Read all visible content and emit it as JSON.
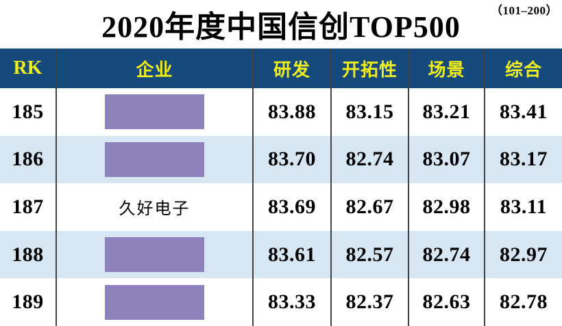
{
  "page": {
    "range_note": "（101–200）",
    "title": "2020年度中国信创TOP500"
  },
  "colors": {
    "header_bg": "#164a7c",
    "header_text": "#f0ee1c",
    "row_alt_bg": "#d7e6f3",
    "redaction_box": "#8d82bc",
    "column_divider": "#424242",
    "body_text": "#000000"
  },
  "table": {
    "columns": [
      {
        "key": "rk",
        "label": "RK"
      },
      {
        "key": "company",
        "label": "企业"
      },
      {
        "key": "rd",
        "label": "研发"
      },
      {
        "key": "pioneering",
        "label": "开拓性"
      },
      {
        "key": "scene",
        "label": "场景"
      },
      {
        "key": "composite",
        "label": "综合"
      }
    ],
    "rows": [
      {
        "rk": "185",
        "company": "",
        "company_redacted": true,
        "rd": "83.88",
        "pioneering": "83.15",
        "scene": "83.21",
        "composite": "83.41"
      },
      {
        "rk": "186",
        "company": "",
        "company_redacted": true,
        "rd": "83.70",
        "pioneering": "82.74",
        "scene": "83.07",
        "composite": "83.17"
      },
      {
        "rk": "187",
        "company": "久好电子",
        "company_redacted": false,
        "rd": "83.69",
        "pioneering": "82.67",
        "scene": "82.98",
        "composite": "83.11"
      },
      {
        "rk": "188",
        "company": "",
        "company_redacted": true,
        "rd": "83.61",
        "pioneering": "82.57",
        "scene": "82.74",
        "composite": "82.97"
      },
      {
        "rk": "189",
        "company": "",
        "company_redacted": true,
        "rd": "83.33",
        "pioneering": "82.37",
        "scene": "82.63",
        "composite": "82.78"
      }
    ]
  },
  "chart_data": {
    "type": "table",
    "title": "2020年度中国信创TOP500",
    "subtitle": "（101–200）",
    "columns": [
      "RK",
      "企业",
      "研发",
      "开拓性",
      "场景",
      "综合"
    ],
    "rows": [
      [
        185,
        null,
        83.88,
        83.15,
        83.21,
        83.41
      ],
      [
        186,
        null,
        83.7,
        82.74,
        83.07,
        83.17
      ],
      [
        187,
        "久好电子",
        83.69,
        82.67,
        82.98,
        83.11
      ],
      [
        188,
        null,
        83.61,
        82.57,
        82.74,
        82.97
      ],
      [
        189,
        null,
        83.33,
        82.37,
        82.63,
        82.78
      ]
    ],
    "notes": "Company names for ranks 185, 186, 188 and 189 are covered by purple redaction boxes"
  }
}
